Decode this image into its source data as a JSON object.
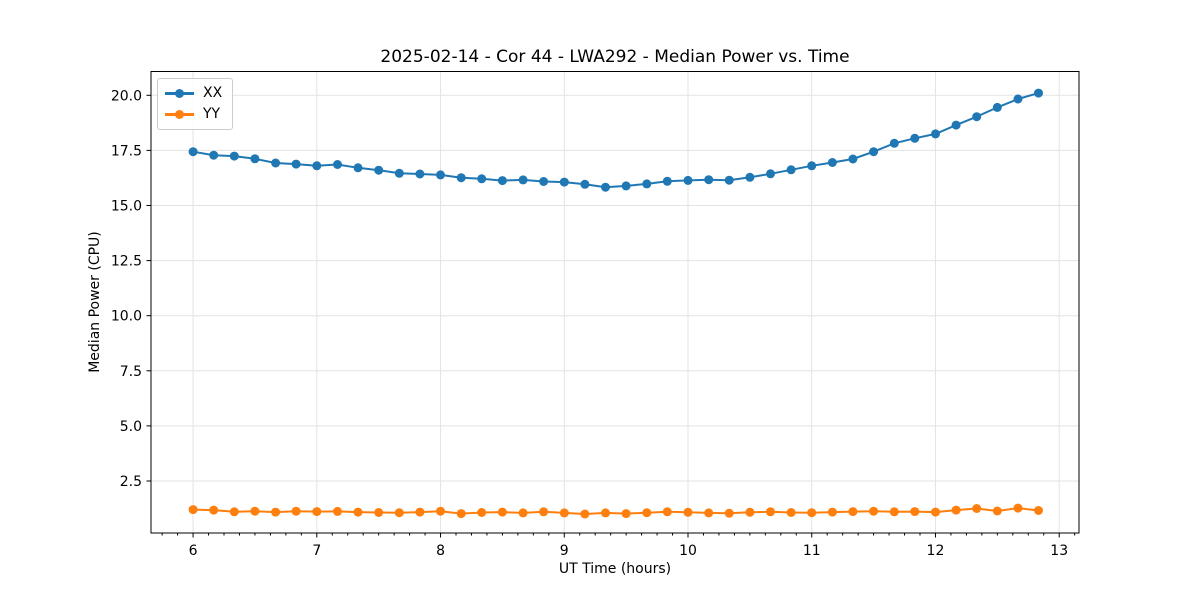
{
  "figure": {
    "background": "#ffffff"
  },
  "chart_data": {
    "type": "line",
    "title": "2025-02-14 - Cor 44 - LWA292 - Median Power vs. Time",
    "xlabel": "UT Time (hours)",
    "ylabel": "Median Power (CPU)",
    "xlim": [
      5.66,
      13.16
    ],
    "ylim": [
      0.14,
      21.08
    ],
    "xticks": [
      6,
      7,
      8,
      9,
      10,
      11,
      12,
      13
    ],
    "yticks": [
      2.5,
      5.0,
      7.5,
      10.0,
      12.5,
      15.0,
      17.5,
      20.0
    ],
    "x_minor_step": 0.125,
    "grid": true,
    "grid_color": "#e3e3e3",
    "spine_color": "#000000",
    "legend_position": "upper-left",
    "marker": "circle",
    "x": [
      6.0,
      6.167,
      6.333,
      6.5,
      6.667,
      6.833,
      7.0,
      7.167,
      7.333,
      7.5,
      7.667,
      7.833,
      8.0,
      8.167,
      8.333,
      8.5,
      8.667,
      8.833,
      9.0,
      9.167,
      9.333,
      9.5,
      9.667,
      9.833,
      10.0,
      10.167,
      10.333,
      10.5,
      10.667,
      10.833,
      11.0,
      11.167,
      11.333,
      11.5,
      11.667,
      11.833,
      12.0,
      12.167,
      12.333,
      12.5,
      12.667,
      12.833
    ],
    "series": [
      {
        "name": "XX",
        "color": "#1f77b4",
        "values": [
          17.44,
          17.28,
          17.24,
          17.12,
          16.93,
          16.88,
          16.8,
          16.86,
          16.71,
          16.6,
          16.46,
          16.43,
          16.39,
          16.26,
          16.21,
          16.13,
          16.16,
          16.09,
          16.06,
          15.96,
          15.83,
          15.89,
          15.98,
          16.1,
          16.14,
          16.17,
          16.15,
          16.28,
          16.44,
          16.62,
          16.8,
          16.95,
          17.11,
          17.44,
          17.82,
          18.05,
          18.25,
          18.65,
          19.03,
          19.45,
          19.83,
          20.1
        ]
      },
      {
        "name": "YY",
        "color": "#ff7f0e",
        "values": [
          1.2,
          1.18,
          1.1,
          1.13,
          1.09,
          1.13,
          1.11,
          1.12,
          1.09,
          1.07,
          1.06,
          1.09,
          1.13,
          1.02,
          1.07,
          1.09,
          1.05,
          1.1,
          1.05,
          1.0,
          1.05,
          1.02,
          1.06,
          1.1,
          1.08,
          1.05,
          1.04,
          1.08,
          1.1,
          1.07,
          1.06,
          1.09,
          1.11,
          1.13,
          1.1,
          1.11,
          1.09,
          1.18,
          1.25,
          1.14,
          1.27,
          1.16
        ]
      }
    ]
  }
}
